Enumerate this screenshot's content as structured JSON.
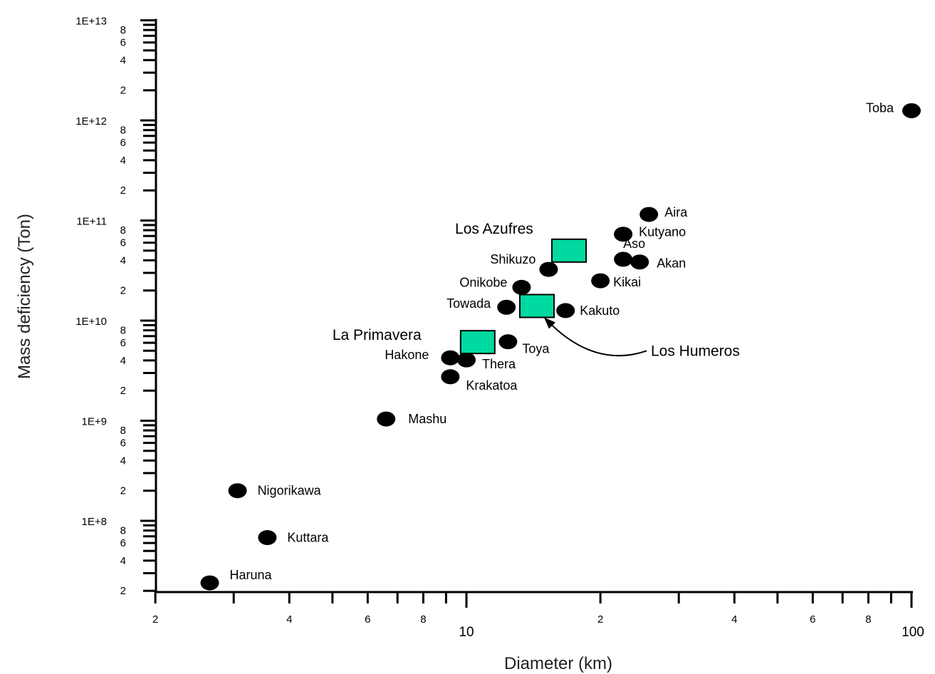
{
  "chart_data": {
    "type": "scatter",
    "xlabel": "Diameter (km)",
    "ylabel": "Mass deficiency (Ton)",
    "x_scale": "log",
    "y_scale": "log",
    "xlim": [
      1.6,
      100
    ],
    "ylim": [
      20000000.0,
      10000000000000.0
    ],
    "x_major_ticks": [
      {
        "value": 2,
        "label": "2"
      },
      {
        "value": 4,
        "label": "4"
      },
      {
        "value": 6,
        "label": "6"
      },
      {
        "value": 8,
        "label": "8"
      },
      {
        "value": 10,
        "label": "10"
      },
      {
        "value": 20,
        "label": "2"
      },
      {
        "value": 40,
        "label": "4"
      },
      {
        "value": 60,
        "label": "6"
      },
      {
        "value": 80,
        "label": "8"
      },
      {
        "value": 100,
        "label": "100"
      }
    ],
    "y_decade_labels": [
      {
        "value": 100000000.0,
        "label": "1E+8"
      },
      {
        "value": 1000000000.0,
        "label": "1E+9"
      },
      {
        "value": 10000000000.0,
        "label": "1E+10"
      },
      {
        "value": 100000000000.0,
        "label": "1E+11"
      },
      {
        "value": 1000000000000.0,
        "label": "1E+12"
      },
      {
        "value": 10000000000000.0,
        "label": "1E+13"
      }
    ],
    "y_minor_labels": [
      "2",
      "4",
      "6",
      "8"
    ],
    "series": [
      {
        "marker": "circle",
        "color": "#000000",
        "points": [
          {
            "name": "Toba",
            "x": 100,
            "y": 1250000000000.0
          },
          {
            "name": "Aira",
            "x": 25.7,
            "y": 115000000000.0
          },
          {
            "name": "Kutyano",
            "x": 22.5,
            "y": 73000000000.0
          },
          {
            "name": "Aso",
            "x": 22.5,
            "y": 41000000000.0
          },
          {
            "name": "Akan",
            "x": 24.5,
            "y": 38500000000.0
          },
          {
            "name": "Kikai",
            "x": 20.0,
            "y": 25000000000.0
          },
          {
            "name": "Shikuzo",
            "x": 15.3,
            "y": 32500000000.0
          },
          {
            "name": "Onikobe",
            "x": 13.3,
            "y": 21500000000.0
          },
          {
            "name": "Towada",
            "x": 12.3,
            "y": 13600000000.0
          },
          {
            "name": "Kakuto",
            "x": 16.7,
            "y": 12600000000.0
          },
          {
            "name": "Toya",
            "x": 12.4,
            "y": 6150000000.0
          },
          {
            "name": "Hakone",
            "x": 9.2,
            "y": 4250000000.0
          },
          {
            "name": "Thera",
            "x": 10.0,
            "y": 4050000000.0
          },
          {
            "name": "Krakatoa",
            "x": 9.2,
            "y": 2750000000.0
          },
          {
            "name": "Mashu",
            "x": 6.6,
            "y": 1040000000.0
          },
          {
            "name": "Nigorikawa",
            "x": 3.06,
            "y": 200000000.0
          },
          {
            "name": "Kuttara",
            "x": 3.57,
            "y": 68000000.0
          },
          {
            "name": "Haruna",
            "x": 2.65,
            "y": 24000000.0
          }
        ]
      },
      {
        "marker": "square",
        "color": "#00d9a0",
        "points": [
          {
            "name": "Los Azufres",
            "x": 17.0,
            "y": 50000000000.0
          },
          {
            "name": "Los Humeros",
            "x": 14.4,
            "y": 14000000000.0
          },
          {
            "name": "La Primavera",
            "x": 10.6,
            "y": 6100000000.0
          }
        ]
      }
    ]
  }
}
